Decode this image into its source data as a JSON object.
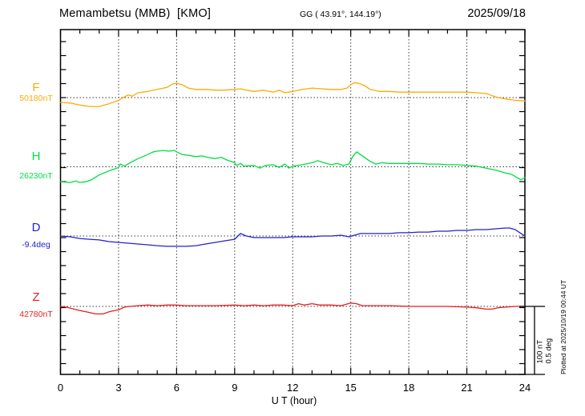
{
  "header": {
    "station_title": "Memambetsu (MMB)  [KMO]",
    "coords": "GG ( 43.91°, 144.19°)",
    "date": "2025/09/18"
  },
  "xlabel": "U T (hour)",
  "scale_bar": {
    "label_nt": "100 nT",
    "label_deg": "0.5 deg"
  },
  "plotted_at": "Plotted at 2025/10/19 00:44 UT",
  "labels": {
    "F": {
      "letter": "F",
      "value": "50180nT",
      "color": "#FFAA00"
    },
    "H": {
      "letter": "H",
      "value": "26230nT",
      "color": "#00DD44"
    },
    "D": {
      "letter": "D",
      "value": "-9.4deg",
      "color": "#2222CC"
    },
    "Z": {
      "letter": "Z",
      "value": "42780nT",
      "color": "#EA1C1C"
    }
  },
  "chart_data": {
    "type": "line",
    "title": "Memambetsu (MMB) [KMO] magnetogram, 2025/09/18",
    "xlabel": "U T (hour)",
    "x_range": [
      0,
      24
    ],
    "x_major_ticks": [
      0,
      3,
      6,
      9,
      12,
      15,
      18,
      21,
      24
    ],
    "x_minor_step": 1,
    "grid": "vertical dotted lines every 3 h; dotted horizontal baseline per component",
    "scale": {
      "bar": "100 nT / 0.5 deg",
      "nT_per_division": 20
    },
    "series": [
      {
        "name": "F",
        "unit": "nT",
        "base": 50180,
        "color": "#FFAA00",
        "points": [
          [
            0,
            50173
          ],
          [
            0.5,
            50172
          ],
          [
            1,
            50169
          ],
          [
            1.5,
            50167
          ],
          [
            2,
            50167
          ],
          [
            2.5,
            50171
          ],
          [
            3,
            50176
          ],
          [
            3.3,
            50181
          ],
          [
            3.5,
            50184
          ],
          [
            3.7,
            50182
          ],
          [
            4,
            50187
          ],
          [
            4.5,
            50189
          ],
          [
            5,
            50192
          ],
          [
            5.5,
            50195
          ],
          [
            5.8,
            50200
          ],
          [
            6,
            50201
          ],
          [
            6.3,
            50199
          ],
          [
            6.6,
            50194
          ],
          [
            7,
            50192
          ],
          [
            7.5,
            50192
          ],
          [
            8,
            50191
          ],
          [
            8.5,
            50191
          ],
          [
            9,
            50192
          ],
          [
            9.3,
            50193
          ],
          [
            9.6,
            50191
          ],
          [
            10,
            50189
          ],
          [
            10.5,
            50191
          ],
          [
            11,
            50188
          ],
          [
            11.3,
            50191
          ],
          [
            11.6,
            50187
          ],
          [
            12,
            50189
          ],
          [
            12.5,
            50192
          ],
          [
            13,
            50194
          ],
          [
            13.5,
            50193
          ],
          [
            14,
            50192
          ],
          [
            14.5,
            50192
          ],
          [
            14.8,
            50194
          ],
          [
            15,
            50199
          ],
          [
            15.2,
            50202
          ],
          [
            15.4,
            50201
          ],
          [
            15.7,
            50198
          ],
          [
            16,
            50192
          ],
          [
            16.5,
            50189
          ],
          [
            17,
            50189
          ],
          [
            17.5,
            50188
          ],
          [
            18,
            50188
          ],
          [
            19,
            50188
          ],
          [
            20,
            50188
          ],
          [
            21,
            50188
          ],
          [
            21.5,
            50187
          ],
          [
            22,
            50186
          ],
          [
            22.5,
            50181
          ],
          [
            23,
            50178
          ],
          [
            23.5,
            50176
          ],
          [
            24,
            50175
          ]
        ]
      },
      {
        "name": "H",
        "unit": "nT",
        "base": 26230,
        "color": "#00DD44",
        "points": [
          [
            0,
            26208
          ],
          [
            0.5,
            26207
          ],
          [
            0.8,
            26209
          ],
          [
            1,
            26207
          ],
          [
            1.3,
            26208
          ],
          [
            1.6,
            26211
          ],
          [
            2,
            26218
          ],
          [
            2.5,
            26224
          ],
          [
            2.8,
            26227
          ],
          [
            3,
            26229
          ],
          [
            3.1,
            26234
          ],
          [
            3.3,
            26231
          ],
          [
            3.6,
            26236
          ],
          [
            4,
            26242
          ],
          [
            4.5,
            26248
          ],
          [
            4.8,
            26252
          ],
          [
            5,
            26253
          ],
          [
            5.3,
            26254
          ],
          [
            5.6,
            26253
          ],
          [
            5.9,
            26254
          ],
          [
            6,
            26252
          ],
          [
            6.3,
            26248
          ],
          [
            6.6,
            26247
          ],
          [
            7,
            26245
          ],
          [
            7.3,
            26246
          ],
          [
            7.6,
            26244
          ],
          [
            8,
            26242
          ],
          [
            8.3,
            26244
          ],
          [
            8.6,
            26240
          ],
          [
            9,
            26236
          ],
          [
            9.1,
            26232
          ],
          [
            9.3,
            26235
          ],
          [
            9.5,
            26231
          ],
          [
            10,
            26232
          ],
          [
            10.3,
            26228
          ],
          [
            10.6,
            26232
          ],
          [
            11,
            26233
          ],
          [
            11.3,
            26229
          ],
          [
            11.6,
            26234
          ],
          [
            11.8,
            26228
          ],
          [
            12,
            26231
          ],
          [
            12.5,
            26233
          ],
          [
            13,
            26236
          ],
          [
            13.3,
            26239
          ],
          [
            13.6,
            26236
          ],
          [
            14,
            26233
          ],
          [
            14.3,
            26235
          ],
          [
            14.6,
            26232
          ],
          [
            14.9,
            26234
          ],
          [
            15.1,
            26245
          ],
          [
            15.3,
            26252
          ],
          [
            15.5,
            26248
          ],
          [
            15.8,
            26242
          ],
          [
            16,
            26238
          ],
          [
            16.3,
            26234
          ],
          [
            16.6,
            26236
          ],
          [
            17,
            26235
          ],
          [
            17.5,
            26235
          ],
          [
            18,
            26235
          ],
          [
            18.5,
            26235
          ],
          [
            19,
            26234
          ],
          [
            19.5,
            26234
          ],
          [
            20,
            26233
          ],
          [
            20.5,
            26233
          ],
          [
            21,
            26232
          ],
          [
            21.5,
            26231
          ],
          [
            22,
            26228
          ],
          [
            22.5,
            26225
          ],
          [
            23,
            26221
          ],
          [
            23.3,
            26219
          ],
          [
            23.6,
            26214
          ],
          [
            23.8,
            26211
          ],
          [
            24,
            26214
          ]
        ]
      },
      {
        "name": "D",
        "unit": "deg",
        "base": -9.4,
        "color": "#2222CC",
        "points": [
          [
            0,
            -9.4
          ],
          [
            0.5,
            -9.406
          ],
          [
            1,
            -9.418
          ],
          [
            1.5,
            -9.424
          ],
          [
            2,
            -9.429
          ],
          [
            2.5,
            -9.441
          ],
          [
            3,
            -9.447
          ],
          [
            3.5,
            -9.453
          ],
          [
            4,
            -9.459
          ],
          [
            4.5,
            -9.465
          ],
          [
            5,
            -9.471
          ],
          [
            5.5,
            -9.476
          ],
          [
            6,
            -9.476
          ],
          [
            6.5,
            -9.476
          ],
          [
            7,
            -9.471
          ],
          [
            7.5,
            -9.459
          ],
          [
            8,
            -9.447
          ],
          [
            8.5,
            -9.435
          ],
          [
            9,
            -9.424
          ],
          [
            9.3,
            -9.382
          ],
          [
            9.6,
            -9.4
          ],
          [
            10,
            -9.412
          ],
          [
            10.5,
            -9.412
          ],
          [
            11,
            -9.412
          ],
          [
            11.5,
            -9.412
          ],
          [
            12,
            -9.406
          ],
          [
            12.5,
            -9.406
          ],
          [
            13,
            -9.406
          ],
          [
            13.5,
            -9.4
          ],
          [
            14,
            -9.4
          ],
          [
            14.5,
            -9.394
          ],
          [
            14.9,
            -9.406
          ],
          [
            15.2,
            -9.394
          ],
          [
            15.5,
            -9.382
          ],
          [
            16,
            -9.382
          ],
          [
            16.5,
            -9.382
          ],
          [
            17,
            -9.382
          ],
          [
            17.5,
            -9.376
          ],
          [
            18,
            -9.376
          ],
          [
            18.5,
            -9.371
          ],
          [
            19,
            -9.371
          ],
          [
            19.5,
            -9.365
          ],
          [
            20,
            -9.365
          ],
          [
            20.5,
            -9.359
          ],
          [
            21,
            -9.359
          ],
          [
            21.5,
            -9.353
          ],
          [
            22,
            -9.353
          ],
          [
            22.5,
            -9.347
          ],
          [
            23,
            -9.341
          ],
          [
            23.2,
            -9.341
          ],
          [
            23.5,
            -9.353
          ],
          [
            23.8,
            -9.382
          ],
          [
            24,
            -9.4
          ]
        ]
      },
      {
        "name": "Z",
        "unit": "nT",
        "base": 42780,
        "color": "#EA1C1C",
        "points": [
          [
            0,
            42780
          ],
          [
            0.3,
            42779
          ],
          [
            0.7,
            42776
          ],
          [
            1,
            42774
          ],
          [
            1.5,
            42771
          ],
          [
            1.8,
            42769
          ],
          [
            2.2,
            42769
          ],
          [
            2.5,
            42772
          ],
          [
            3,
            42775
          ],
          [
            3.3,
            42779
          ],
          [
            3.6,
            42780
          ],
          [
            4,
            42781
          ],
          [
            4.5,
            42782
          ],
          [
            5,
            42781
          ],
          [
            5.5,
            42782
          ],
          [
            6,
            42782
          ],
          [
            6.5,
            42781
          ],
          [
            7,
            42781
          ],
          [
            8,
            42781
          ],
          [
            9,
            42782
          ],
          [
            9.5,
            42781
          ],
          [
            10,
            42782
          ],
          [
            10.5,
            42781
          ],
          [
            11,
            42782
          ],
          [
            11.5,
            42782
          ],
          [
            12,
            42781
          ],
          [
            12.3,
            42784
          ],
          [
            12.6,
            42782
          ],
          [
            13,
            42784
          ],
          [
            13.4,
            42782
          ],
          [
            14,
            42782
          ],
          [
            14.5,
            42781
          ],
          [
            15,
            42785
          ],
          [
            15.3,
            42784
          ],
          [
            15.6,
            42781
          ],
          [
            16,
            42781
          ],
          [
            17,
            42781
          ],
          [
            18,
            42780
          ],
          [
            19,
            42780
          ],
          [
            20,
            42780
          ],
          [
            21,
            42779
          ],
          [
            21.5,
            42778
          ],
          [
            22,
            42776
          ],
          [
            22.3,
            42776
          ],
          [
            22.6,
            42778
          ],
          [
            23,
            42779
          ],
          [
            23.5,
            42780
          ],
          [
            24,
            42780
          ]
        ]
      }
    ]
  }
}
